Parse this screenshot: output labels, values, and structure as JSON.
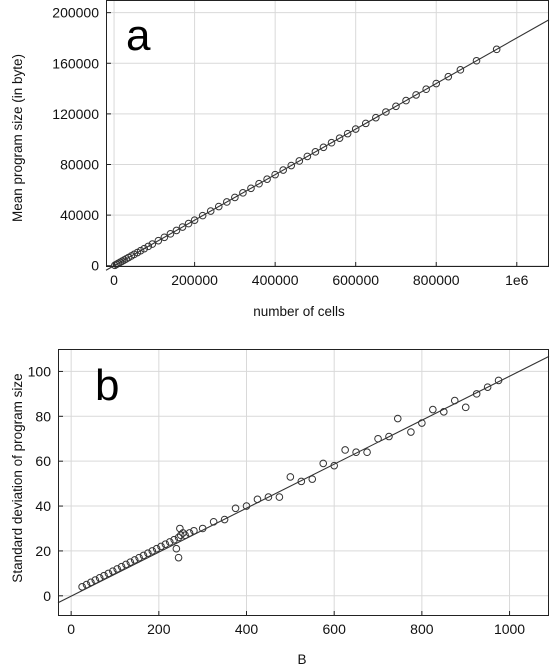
{
  "colors": {
    "grid": "#d9d9d9",
    "axis": "#222222",
    "fit_line": "#333333",
    "marker": "#333333",
    "background": "#ffffff"
  },
  "chart_data": [
    {
      "id": "a",
      "type": "scatter",
      "panel_label": "a",
      "xlabel": "number of cells",
      "ylabel": "Mean program size (in byte)",
      "xlim": [
        -20000,
        1080000
      ],
      "ylim": [
        -1000,
        210000
      ],
      "x_ticks": [
        0,
        200000,
        400000,
        600000,
        800000,
        1000000
      ],
      "x_tick_labels": [
        "0",
        "200000",
        "400000",
        "600000",
        "800000",
        "1e6"
      ],
      "y_ticks": [
        0,
        40000,
        80000,
        120000,
        160000,
        200000
      ],
      "y_tick_labels": [
        "0",
        "40000",
        "80000",
        "120000",
        "160000",
        "200000"
      ],
      "grid": true,
      "fit_line": {
        "x": [
          -20000,
          1080000
        ],
        "y": [
          -3600,
          194400
        ]
      },
      "series": [
        {
          "x": [
            2000,
            6000,
            10000,
            15000,
            20000,
            25000,
            30000,
            36000,
            43000,
            50000,
            58000,
            66000,
            75000,
            85000,
            95000,
            110000,
            125000,
            140000,
            155000,
            170000,
            185000,
            200000,
            220000,
            240000,
            260000,
            280000,
            300000,
            320000,
            340000,
            360000,
            380000,
            400000,
            420000,
            440000,
            460000,
            480000,
            500000,
            520000,
            540000,
            560000,
            580000,
            600000,
            625000,
            650000,
            675000,
            700000,
            725000,
            750000,
            775000,
            800000,
            830000,
            860000,
            900000,
            950000
          ],
          "y": [
            360,
            1080,
            1800,
            2700,
            3600,
            4500,
            5400,
            6480,
            7740,
            9000,
            10440,
            11880,
            13500,
            15300,
            17100,
            19800,
            22500,
            25200,
            27900,
            30600,
            33300,
            36000,
            39600,
            43200,
            46800,
            50400,
            54000,
            57600,
            61200,
            64800,
            68400,
            72000,
            75600,
            79200,
            82800,
            86400,
            90000,
            93600,
            97200,
            100800,
            104400,
            108000,
            112500,
            117000,
            121500,
            126000,
            130500,
            135000,
            139500,
            144000,
            149400,
            154800,
            162000,
            171000
          ]
        }
      ]
    },
    {
      "id": "b",
      "type": "scatter",
      "panel_label": "b",
      "xlabel": "B",
      "ylabel": "Standard deviation of program size",
      "xlim": [
        -30,
        1090
      ],
      "ylim": [
        -9,
        110
      ],
      "x_ticks": [
        0,
        200,
        400,
        600,
        800,
        1000
      ],
      "x_tick_labels": [
        "0",
        "200",
        "400",
        "600",
        "800",
        "1000"
      ],
      "y_ticks": [
        0,
        20,
        40,
        60,
        80,
        100
      ],
      "y_tick_labels": [
        "0",
        "20",
        "40",
        "60",
        "80",
        "100"
      ],
      "grid": true,
      "fit_line": {
        "x": [
          -30,
          1090
        ],
        "y": [
          -3.1,
          106.7
        ]
      },
      "series": [
        {
          "x": [
            25,
            35,
            45,
            55,
            65,
            75,
            85,
            95,
            105,
            115,
            125,
            135,
            145,
            155,
            165,
            175,
            185,
            195,
            205,
            215,
            225,
            235,
            240,
            245,
            245,
            248,
            250,
            255,
            260,
            270,
            280,
            300,
            325,
            350,
            375,
            400,
            425,
            450,
            475,
            500,
            525,
            550,
            575,
            600,
            625,
            650,
            675,
            700,
            725,
            745,
            775,
            800,
            825,
            850,
            875,
            900,
            925,
            950,
            975
          ],
          "y": [
            4,
            5,
            6,
            7,
            8,
            9,
            10,
            11,
            12,
            13,
            14,
            15,
            16,
            17,
            18,
            19,
            20,
            21,
            22,
            23,
            24,
            25,
            21,
            17,
            26,
            30,
            27,
            28,
            27,
            28,
            29,
            30,
            33,
            34,
            39,
            40,
            43,
            44,
            44,
            53,
            51,
            52,
            59,
            58,
            65,
            64,
            64,
            70,
            71,
            79,
            73,
            77,
            83,
            82,
            87,
            84,
            90,
            93,
            96
          ]
        }
      ]
    }
  ]
}
